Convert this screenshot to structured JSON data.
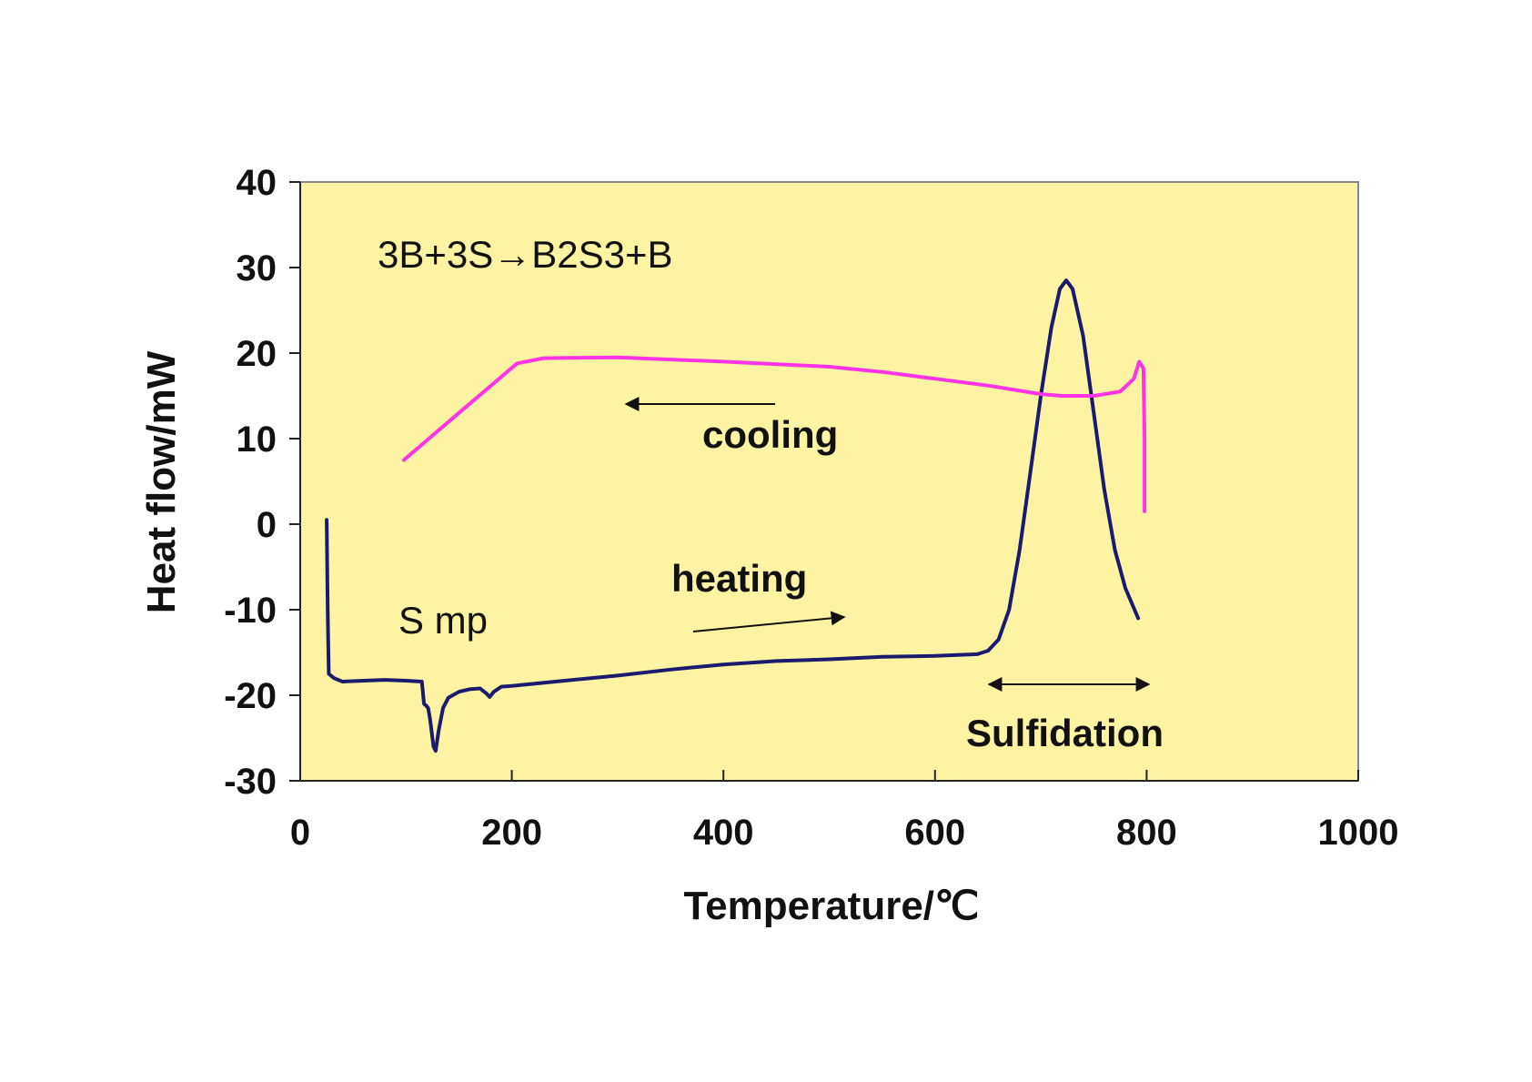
{
  "colors": {
    "plot_background": "#FCF4A3",
    "heating": "#1A1A6E",
    "cooling": "#FF33E6",
    "axis": "#222222"
  },
  "chart_data": {
    "type": "line",
    "xlabel": "Temperature/℃",
    "ylabel": "Heat flow/mW",
    "xlim": [
      0,
      1000
    ],
    "ylim": [
      -30,
      40
    ],
    "x_ticks": [
      "0",
      "200",
      "400",
      "600",
      "800",
      "1000"
    ],
    "y_ticks": [
      "40",
      "30",
      "20",
      "10",
      "0",
      "-10",
      "-20",
      "-30"
    ],
    "grid": false,
    "annotations": {
      "equation": "3B+3S→B2S3+B",
      "cooling": "cooling",
      "heating": "heating",
      "smp": "S mp",
      "sulfidation": "Sulfidation"
    },
    "series": [
      {
        "points": [
          [
            25,
            0.5
          ],
          [
            26,
            -10
          ],
          [
            27,
            -17.5
          ],
          [
            32,
            -18
          ],
          [
            40,
            -18.4
          ],
          [
            60,
            -18.3
          ],
          [
            80,
            -18.2
          ],
          [
            100,
            -18.3
          ],
          [
            115,
            -18.4
          ],
          [
            117,
            -21
          ],
          [
            119,
            -21.2
          ],
          [
            121,
            -21.5
          ],
          [
            123,
            -23
          ],
          [
            126,
            -26
          ],
          [
            128,
            -26.5
          ],
          [
            131,
            -24
          ],
          [
            135,
            -21.5
          ],
          [
            140,
            -20.3
          ],
          [
            150,
            -19.6
          ],
          [
            160,
            -19.3
          ],
          [
            170,
            -19.2
          ],
          [
            176,
            -19.8
          ],
          [
            179,
            -20.2
          ],
          [
            183,
            -19.6
          ],
          [
            190,
            -19.0
          ],
          [
            200,
            -18.9
          ],
          [
            250,
            -18.3
          ],
          [
            300,
            -17.7
          ],
          [
            350,
            -17.0
          ],
          [
            400,
            -16.4
          ],
          [
            450,
            -16.0
          ],
          [
            500,
            -15.8
          ],
          [
            550,
            -15.5
          ],
          [
            600,
            -15.4
          ],
          [
            640,
            -15.2
          ],
          [
            650,
            -14.8
          ],
          [
            660,
            -13.5
          ],
          [
            670,
            -10
          ],
          [
            680,
            -3
          ],
          [
            690,
            6
          ],
          [
            700,
            15
          ],
          [
            710,
            23
          ],
          [
            718,
            27.5
          ],
          [
            724,
            28.5
          ],
          [
            730,
            27.5
          ],
          [
            740,
            22
          ],
          [
            750,
            13
          ],
          [
            760,
            4
          ],
          [
            770,
            -3
          ],
          [
            780,
            -7.5
          ],
          [
            792,
            -11
          ]
        ]
      },
      {
        "points": [
          [
            98,
            7.5
          ],
          [
            150,
            13
          ],
          [
            205,
            18.8
          ],
          [
            230,
            19.4
          ],
          [
            300,
            19.5
          ],
          [
            400,
            19.0
          ],
          [
            500,
            18.4
          ],
          [
            550,
            17.8
          ],
          [
            600,
            17.0
          ],
          [
            650,
            16.2
          ],
          [
            700,
            15.2
          ],
          [
            720,
            15.0
          ],
          [
            750,
            15.0
          ],
          [
            775,
            15.5
          ],
          [
            788,
            17
          ],
          [
            793,
            19
          ],
          [
            797,
            18.2
          ],
          [
            798,
            10
          ],
          [
            798,
            1.5
          ]
        ]
      }
    ]
  }
}
